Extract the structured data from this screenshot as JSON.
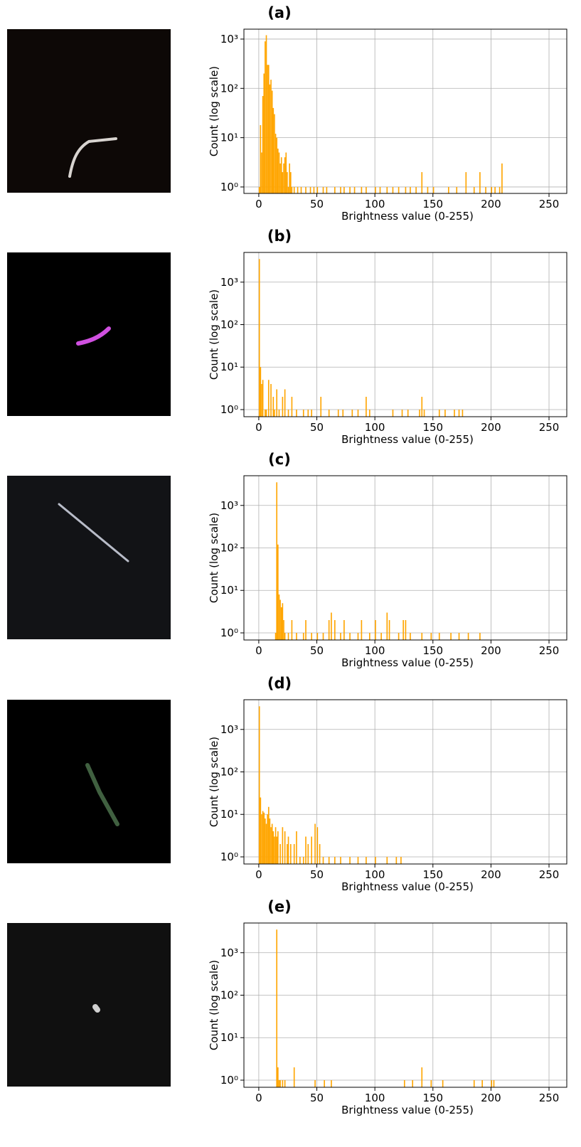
{
  "chart_data": [
    {
      "type": "bar",
      "title": "(a)",
      "xlabel": "Brightness value (0-255)",
      "ylabel": "Count (log scale)",
      "color": "#ffa500",
      "log_y": true,
      "grid": true,
      "xlim": [
        -12.8,
        265.3
      ],
      "ylim": [
        0.74,
        1590
      ],
      "xticks": [
        0,
        50,
        100,
        150,
        200,
        250
      ],
      "yticks": [
        {
          "value": 1,
          "label": "10⁰"
        },
        {
          "value": 10,
          "label": "10¹"
        },
        {
          "value": 100,
          "label": "10²"
        },
        {
          "value": 1000,
          "label": "10³"
        }
      ],
      "x": [
        0,
        1,
        2,
        3,
        4,
        5,
        6,
        7,
        8,
        9,
        10,
        11,
        12,
        13,
        14,
        15,
        16,
        17,
        18,
        19,
        20,
        21,
        22,
        23,
        24,
        25,
        26,
        27,
        28,
        30,
        33,
        36,
        40,
        44,
        47,
        50,
        55,
        58,
        65,
        70,
        73,
        78,
        82,
        88,
        92,
        100,
        104,
        110,
        115,
        120,
        126,
        130,
        135,
        140,
        145,
        150,
        163,
        170,
        178,
        185,
        190,
        195,
        200,
        203,
        207,
        209
      ],
      "values": [
        1,
        18,
        5,
        70,
        200,
        900,
        1200,
        300,
        300,
        120,
        150,
        90,
        40,
        30,
        12,
        10,
        6,
        5,
        3,
        4,
        2,
        3,
        4,
        5,
        2,
        1,
        3,
        2,
        1,
        1,
        1,
        1,
        1,
        1,
        1,
        1,
        1,
        1,
        1,
        1,
        1,
        1,
        1,
        1,
        1,
        1,
        1,
        1,
        1,
        1,
        1,
        1,
        1,
        2,
        1,
        1,
        1,
        1,
        2,
        1,
        2,
        1,
        1,
        1,
        1,
        3
      ]
    },
    {
      "type": "bar",
      "title": "(b)",
      "xlabel": "Brightness value (0-255)",
      "ylabel": "Count (log scale)",
      "color": "#ffa500",
      "log_y": true,
      "grid": true,
      "xlim": [
        -12.8,
        265.3
      ],
      "ylim": [
        0.68,
        5000
      ],
      "xticks": [
        0,
        50,
        100,
        150,
        200,
        250
      ],
      "yticks": [
        {
          "value": 1,
          "label": "10⁰"
        },
        {
          "value": 10,
          "label": "10¹"
        },
        {
          "value": 100,
          "label": "10²"
        },
        {
          "value": 1000,
          "label": "10³"
        }
      ],
      "x": [
        0,
        1,
        2,
        3,
        5,
        6,
        8,
        10,
        12,
        13,
        15,
        17,
        20,
        22,
        25,
        28,
        32,
        38,
        42,
        45,
        53,
        60,
        68,
        72,
        80,
        85,
        92,
        95,
        115,
        123,
        128,
        138,
        140,
        142,
        155,
        160,
        168,
        172,
        175
      ],
      "values": [
        3500,
        10,
        4,
        5,
        1,
        1,
        5,
        4,
        2,
        1,
        3,
        1,
        2,
        3,
        1,
        2,
        1,
        1,
        1,
        1,
        2,
        1,
        1,
        1,
        1,
        1,
        2,
        1,
        1,
        1,
        1,
        1,
        2,
        1,
        1,
        1,
        1,
        1,
        1
      ]
    },
    {
      "type": "bar",
      "title": "(c)",
      "xlabel": "Brightness value (0-255)",
      "ylabel": "Count (log scale)",
      "color": "#ffa500",
      "log_y": true,
      "grid": true,
      "xlim": [
        -12.8,
        265.3
      ],
      "ylim": [
        0.68,
        5000
      ],
      "xticks": [
        0,
        50,
        100,
        150,
        200,
        250
      ],
      "yticks": [
        {
          "value": 1,
          "label": "10⁰"
        },
        {
          "value": 10,
          "label": "10¹"
        },
        {
          "value": 100,
          "label": "10²"
        },
        {
          "value": 1000,
          "label": "10³"
        }
      ],
      "x": [
        14,
        15,
        16,
        17,
        18,
        19,
        20,
        21,
        22,
        25,
        28,
        32,
        38,
        40,
        45,
        50,
        55,
        60,
        62,
        65,
        70,
        73,
        78,
        85,
        88,
        95,
        100,
        105,
        110,
        112,
        120,
        124,
        126,
        130,
        140,
        148,
        155,
        165,
        172,
        180,
        190
      ],
      "values": [
        1,
        3500,
        120,
        8,
        6,
        4,
        5,
        2,
        1,
        1,
        2,
        1,
        1,
        2,
        1,
        1,
        1,
        2,
        3,
        2,
        1,
        2,
        1,
        1,
        2,
        1,
        2,
        1,
        3,
        2,
        1,
        2,
        2,
        1,
        1,
        1,
        1,
        1,
        1,
        1,
        1
      ]
    },
    {
      "type": "bar",
      "title": "(d)",
      "xlabel": "Brightness value (0-255)",
      "ylabel": "Count (log scale)",
      "color": "#ffa500",
      "log_y": true,
      "grid": true,
      "xlim": [
        -12.8,
        265.3
      ],
      "ylim": [
        0.68,
        5000
      ],
      "xticks": [
        0,
        50,
        100,
        150,
        200,
        250
      ],
      "yticks": [
        {
          "value": 1,
          "label": "10⁰"
        },
        {
          "value": 10,
          "label": "10¹"
        },
        {
          "value": 100,
          "label": "10²"
        },
        {
          "value": 1000,
          "label": "10³"
        }
      ],
      "x": [
        0,
        1,
        2,
        3,
        4,
        5,
        6,
        7,
        8,
        9,
        10,
        11,
        12,
        13,
        14,
        15,
        16,
        18,
        20,
        22,
        24,
        25,
        27,
        30,
        32,
        35,
        38,
        40,
        42,
        45,
        48,
        50,
        52,
        55,
        60,
        65,
        70,
        78,
        85,
        92,
        100,
        110,
        118,
        122
      ],
      "values": [
        3500,
        25,
        10,
        12,
        11,
        8,
        6,
        10,
        15,
        8,
        5,
        6,
        4,
        3,
        5,
        3,
        4,
        2,
        5,
        4,
        2,
        3,
        2,
        2,
        4,
        1,
        1,
        3,
        2,
        3,
        6,
        5,
        2,
        1,
        1,
        1,
        1,
        1,
        1,
        1,
        1,
        1,
        1,
        1
      ]
    },
    {
      "type": "bar",
      "title": "(e)",
      "xlabel": "Brightness value (0-255)",
      "ylabel": "Count (log scale)",
      "color": "#ffa500",
      "log_y": true,
      "grid": true,
      "xlim": [
        -12.8,
        265.3
      ],
      "ylim": [
        0.68,
        5000
      ],
      "xticks": [
        0,
        50,
        100,
        150,
        200,
        250
      ],
      "yticks": [
        {
          "value": 1,
          "label": "10⁰"
        },
        {
          "value": 10,
          "label": "10¹"
        },
        {
          "value": 100,
          "label": "10²"
        },
        {
          "value": 1000,
          "label": "10³"
        }
      ],
      "x": [
        15,
        16,
        17,
        18,
        20,
        22,
        30,
        48,
        56,
        62,
        125,
        132,
        140,
        148,
        158,
        185,
        192,
        200,
        202
      ],
      "values": [
        3500,
        2,
        1,
        1,
        1,
        1,
        2,
        1,
        1,
        1,
        1,
        1,
        2,
        1,
        1,
        1,
        1,
        1,
        1
      ]
    }
  ]
}
